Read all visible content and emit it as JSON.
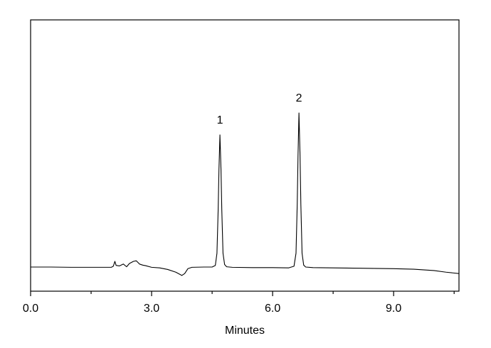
{
  "chart_data": {
    "type": "line",
    "x_label": "Minutes",
    "xlim": [
      0,
      10.62
    ],
    "ylim": [
      0,
      100
    ],
    "xticks": [
      {
        "value": 0,
        "label": "0.0"
      },
      {
        "value": 3,
        "label": "3.0"
      },
      {
        "value": 6,
        "label": "6.0"
      },
      {
        "value": 9,
        "label": "9.0"
      }
    ],
    "xminor_ticks": [
      1.5,
      4.5,
      7.5,
      10.5
    ],
    "annotations": [
      {
        "text": "1",
        "x": 4.694,
        "y": 57.6
      },
      {
        "text": "2",
        "x": 6.653,
        "y": 65.7
      }
    ],
    "series": [
      {
        "color": "#000000",
        "x": [
          0.0,
          0.5,
          1.0,
          1.5,
          2.0,
          2.05,
          2.09,
          2.12,
          2.2,
          2.3,
          2.38,
          2.45,
          2.55,
          2.62,
          2.7,
          2.78,
          2.85,
          3.0,
          3.2,
          3.4,
          3.6,
          3.75,
          3.82,
          3.9,
          4.0,
          4.3,
          4.5,
          4.58,
          4.62,
          4.65,
          4.67,
          4.694,
          4.72,
          4.74,
          4.77,
          4.81,
          4.86,
          5.0,
          5.5,
          6.0,
          6.4,
          6.53,
          6.58,
          6.61,
          6.63,
          6.653,
          6.68,
          6.7,
          6.73,
          6.77,
          6.82,
          7.0,
          7.5,
          8.0,
          8.5,
          9.0,
          9.5,
          10.0,
          10.3,
          10.62
        ],
        "values": [
          8.9,
          8.9,
          8.8,
          8.8,
          8.8,
          9.2,
          11.0,
          9.5,
          9.3,
          10.0,
          9.0,
          10.2,
          11.0,
          11.2,
          10.0,
          9.6,
          9.4,
          8.8,
          8.6,
          8.0,
          7.0,
          5.8,
          6.5,
          8.3,
          8.8,
          8.9,
          8.9,
          9.5,
          14,
          30,
          45,
          57.6,
          45,
          30,
          14,
          9.8,
          9.0,
          8.8,
          8.7,
          8.7,
          8.6,
          9.2,
          14,
          32,
          50,
          65.7,
          50,
          32,
          14,
          9.6,
          8.9,
          8.7,
          8.6,
          8.5,
          8.4,
          8.3,
          8.1,
          7.6,
          7.0,
          6.5
        ]
      }
    ]
  }
}
